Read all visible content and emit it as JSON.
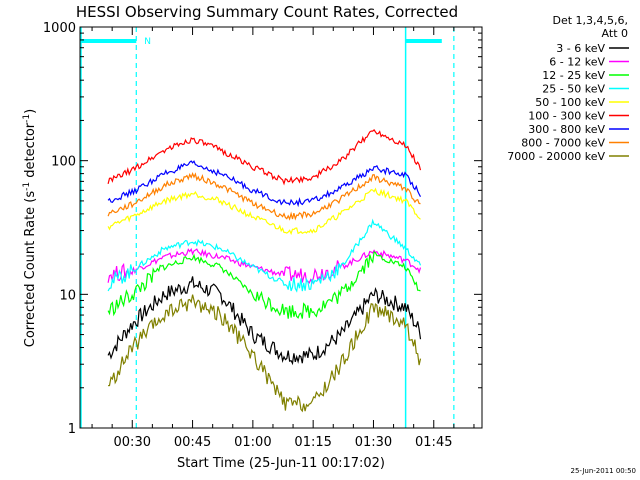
{
  "chart_data": {
    "type": "line",
    "title": "HESSI Observing Summary Count Rates, Corrected",
    "xlabel": "Start Time (25-Jun-11 00:17:02)",
    "ylabel": "Corrected Count Rate (s",
    "ylabel_sup1": "-1",
    "ylabel_mid": " detector",
    "ylabel_sup2": "-1",
    "ylabel_end": ")",
    "y_scale": "log",
    "xlim": [
      "00:17",
      "01:57"
    ],
    "ylim": [
      1,
      1000
    ],
    "x_ticks": [
      "00:30",
      "00:45",
      "01:00",
      "01:15",
      "01:30",
      "01:45"
    ],
    "y_ticks": [
      "1",
      "10",
      "100",
      "1000"
    ],
    "legend_header": [
      "Det 1,3,4,5,6,",
      "Att 0"
    ],
    "flag_label": "N",
    "timestamp": "25-Jun-2011 00:50",
    "series": [
      {
        "name": "3 - 6 keV",
        "color": "#000000",
        "x": [
          "00:24",
          "00:30",
          "00:38",
          "00:45",
          "00:52",
          "01:00",
          "01:08",
          "01:15",
          "01:22",
          "01:30",
          "01:38",
          "01:42"
        ],
        "values": [
          3.5,
          6,
          10,
          12,
          10,
          5,
          3.5,
          3.5,
          5,
          10,
          8,
          5
        ]
      },
      {
        "name": "6 - 12 keV",
        "color": "#ff00ff",
        "x": [
          "00:24",
          "00:30",
          "00:38",
          "00:45",
          "00:52",
          "01:00",
          "01:08",
          "01:15",
          "01:22",
          "01:30",
          "01:38",
          "01:42"
        ],
        "values": [
          14,
          15,
          19,
          21,
          19,
          16,
          14,
          14,
          16,
          21,
          18,
          15
        ]
      },
      {
        "name": "12 - 25 keV",
        "color": "#00ff00",
        "x": [
          "00:24",
          "00:30",
          "00:38",
          "00:45",
          "00:52",
          "01:00",
          "01:08",
          "01:15",
          "01:22",
          "01:30",
          "01:38",
          "01:42"
        ],
        "values": [
          7.5,
          10,
          16,
          19,
          16,
          10,
          7.5,
          7.5,
          10,
          20,
          16,
          10
        ]
      },
      {
        "name": "25 - 50 keV",
        "color": "#00ffff",
        "x": [
          "00:24",
          "00:30",
          "00:38",
          "00:45",
          "00:52",
          "01:00",
          "01:08",
          "01:15",
          "01:22",
          "01:30",
          "01:38",
          "01:42"
        ],
        "values": [
          12,
          15,
          22,
          25,
          22,
          16,
          12,
          12,
          16,
          35,
          22,
          16
        ]
      },
      {
        "name": "50 - 100 keV",
        "color": "#ffff00",
        "x": [
          "00:24",
          "00:30",
          "00:38",
          "00:45",
          "00:52",
          "01:00",
          "01:08",
          "01:15",
          "01:22",
          "01:30",
          "01:38",
          "01:42"
        ],
        "values": [
          32,
          38,
          50,
          57,
          50,
          38,
          30,
          30,
          40,
          60,
          50,
          36
        ]
      },
      {
        "name": "100 - 300 keV",
        "color": "#ff0000",
        "x": [
          "00:24",
          "00:30",
          "00:38",
          "00:45",
          "00:52",
          "01:00",
          "01:08",
          "01:15",
          "01:22",
          "01:30",
          "01:38",
          "01:42"
        ],
        "values": [
          70,
          85,
          120,
          145,
          120,
          90,
          70,
          75,
          100,
          170,
          130,
          85
        ]
      },
      {
        "name": "300 - 800 keV",
        "color": "#0000ff",
        "x": [
          "00:24",
          "00:30",
          "00:38",
          "00:45",
          "00:52",
          "01:00",
          "01:08",
          "01:15",
          "01:22",
          "01:30",
          "01:38",
          "01:42"
        ],
        "values": [
          50,
          58,
          80,
          95,
          80,
          60,
          48,
          50,
          62,
          88,
          78,
          55
        ]
      },
      {
        "name": "800 - 7000 keV",
        "color": "#ff8000",
        "x": [
          "00:24",
          "00:30",
          "00:38",
          "00:45",
          "00:52",
          "01:00",
          "01:08",
          "01:15",
          "01:22",
          "01:30",
          "01:38",
          "01:42"
        ],
        "values": [
          40,
          47,
          65,
          78,
          65,
          48,
          38,
          40,
          52,
          75,
          62,
          45
        ]
      },
      {
        "name": "7000 - 20000 keV",
        "color": "#808000",
        "x": [
          "00:24",
          "00:30",
          "00:38",
          "00:45",
          "00:52",
          "01:00",
          "01:08",
          "01:15",
          "01:22",
          "01:30",
          "01:38",
          "01:42"
        ],
        "values": [
          2,
          4,
          7,
          9,
          7,
          3.5,
          1.5,
          1.5,
          3,
          8,
          6,
          3
        ]
      }
    ],
    "markers": {
      "color": "#00ffff",
      "solid": [
        "00:17",
        "01:38"
      ],
      "dashed": [
        "00:31",
        "01:50"
      ],
      "bars": [
        [
          "00:17",
          "00:31"
        ],
        [
          "01:38",
          "01:47"
        ]
      ]
    }
  }
}
